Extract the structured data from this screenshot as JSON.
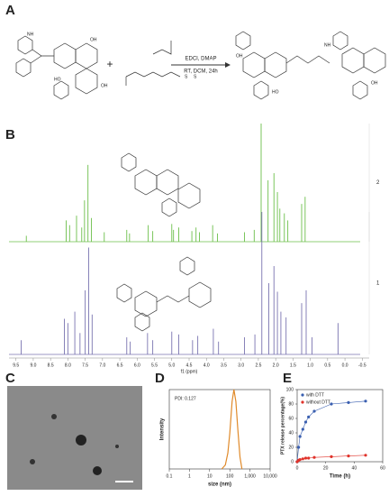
{
  "panel_labels": [
    "A",
    "B",
    "C",
    "D",
    "E"
  ],
  "scheme": {
    "plus": "+",
    "reagents": "EDCI, DMAP",
    "conditions": "RT, DCM, 24h",
    "atom_labels": [
      "NH",
      "OH",
      "HO",
      "OH",
      "S",
      "S",
      "NH",
      "OH",
      "HO",
      "OH"
    ]
  },
  "chart_data": [
    {
      "type": "spectrum",
      "xlabel": "f1 (ppm)",
      "xlim": [
        9.7,
        -0.7
      ],
      "xticks": [
        9.5,
        {
          "value": 9,
          "label": "9.0"
        },
        8.5,
        {
          "value": 8,
          "label": "8.0"
        },
        7.5,
        {
          "value": 7,
          "label": "7.0"
        },
        6.5,
        {
          "value": 6,
          "label": "6.0"
        },
        5.5,
        {
          "value": 5,
          "label": "5.0"
        },
        4.5,
        {
          "value": 4,
          "label": "4.0"
        },
        3.5,
        {
          "value": 3,
          "label": "3.0"
        },
        2.5,
        {
          "value": 2,
          "label": "2.0"
        },
        1.5,
        {
          "value": 1,
          "label": "1.0"
        },
        0.5,
        {
          "value": 0,
          "label": "0.0"
        },
        -0.5
      ],
      "series": [
        {
          "name": "2",
          "color": "#6cbf4a",
          "x": [
            9.2,
            8.05,
            7.95,
            7.75,
            7.6,
            7.52,
            7.42,
            7.32,
            6.95,
            6.3,
            6.22,
            5.68,
            5.55,
            5.0,
            4.95,
            4.8,
            4.42,
            4.3,
            4.2,
            3.82,
            3.68,
            2.9,
            2.62,
            2.42,
            2.22,
            2.05,
            1.95,
            1.88,
            1.75,
            1.65,
            1.25,
            1.15
          ],
          "values": [
            5,
            18,
            14,
            22,
            12,
            35,
            65,
            20,
            8,
            10,
            7,
            14,
            9,
            15,
            10,
            12,
            9,
            12,
            8,
            14,
            7,
            8,
            10,
            100,
            52,
            58,
            42,
            28,
            24,
            18,
            32,
            38
          ]
        },
        {
          "name": "1",
          "color": "#7a74b0",
          "x": [
            9.35,
            8.1,
            8.0,
            7.8,
            7.65,
            7.5,
            7.4,
            7.3,
            6.3,
            6.2,
            5.7,
            5.55,
            5.0,
            4.8,
            4.4,
            4.25,
            3.8,
            3.65,
            2.9,
            2.6,
            2.4,
            2.2,
            2.05,
            1.95,
            1.85,
            1.7,
            1.25,
            1.12,
            0.95,
            0.2
          ],
          "values": [
            10,
            25,
            22,
            30,
            15,
            45,
            75,
            28,
            12,
            9,
            15,
            10,
            16,
            14,
            10,
            13,
            18,
            9,
            12,
            14,
            100,
            50,
            62,
            44,
            30,
            26,
            36,
            45,
            12,
            22
          ]
        }
      ]
    },
    {
      "type": "line",
      "annotation": "PDI: 0.127",
      "xlabel": "size (nm)",
      "ylabel": "Intensity",
      "xscale": "log",
      "xlim": [
        0.1,
        10000
      ],
      "ylim": [
        0,
        100
      ],
      "xticks": [
        0.1,
        1,
        10,
        100,
        {
          "value": 1000,
          "label": "1,000"
        },
        {
          "value": 10000,
          "label": "10,000"
        }
      ],
      "color": "#e08a2a",
      "x": [
        40,
        60,
        80,
        100,
        130,
        160,
        200,
        250,
        320,
        400
      ],
      "values": [
        0,
        5,
        20,
        45,
        85,
        100,
        85,
        50,
        15,
        0
      ]
    },
    {
      "type": "scatter-line",
      "xlabel": "Time (h)",
      "ylabel": "PTX release percentage(%)",
      "xlim": [
        0,
        60
      ],
      "ylim": [
        0,
        100
      ],
      "xticks": [
        0,
        20,
        40,
        60
      ],
      "yticks": [
        0,
        20,
        40,
        60,
        80,
        100
      ],
      "series": [
        {
          "name": "with DTT",
          "color": "#3a5fb0",
          "x": [
            0,
            1,
            2,
            4,
            6,
            8,
            12,
            24,
            36,
            48
          ],
          "values": [
            0,
            20,
            35,
            45,
            55,
            62,
            70,
            80,
            82,
            84
          ]
        },
        {
          "name": "without DTT",
          "color": "#e0322a",
          "x": [
            0,
            1,
            2,
            4,
            6,
            8,
            12,
            24,
            36,
            48
          ],
          "values": [
            0,
            2,
            3,
            4,
            5,
            5,
            6,
            7,
            8,
            9
          ]
        }
      ]
    }
  ]
}
